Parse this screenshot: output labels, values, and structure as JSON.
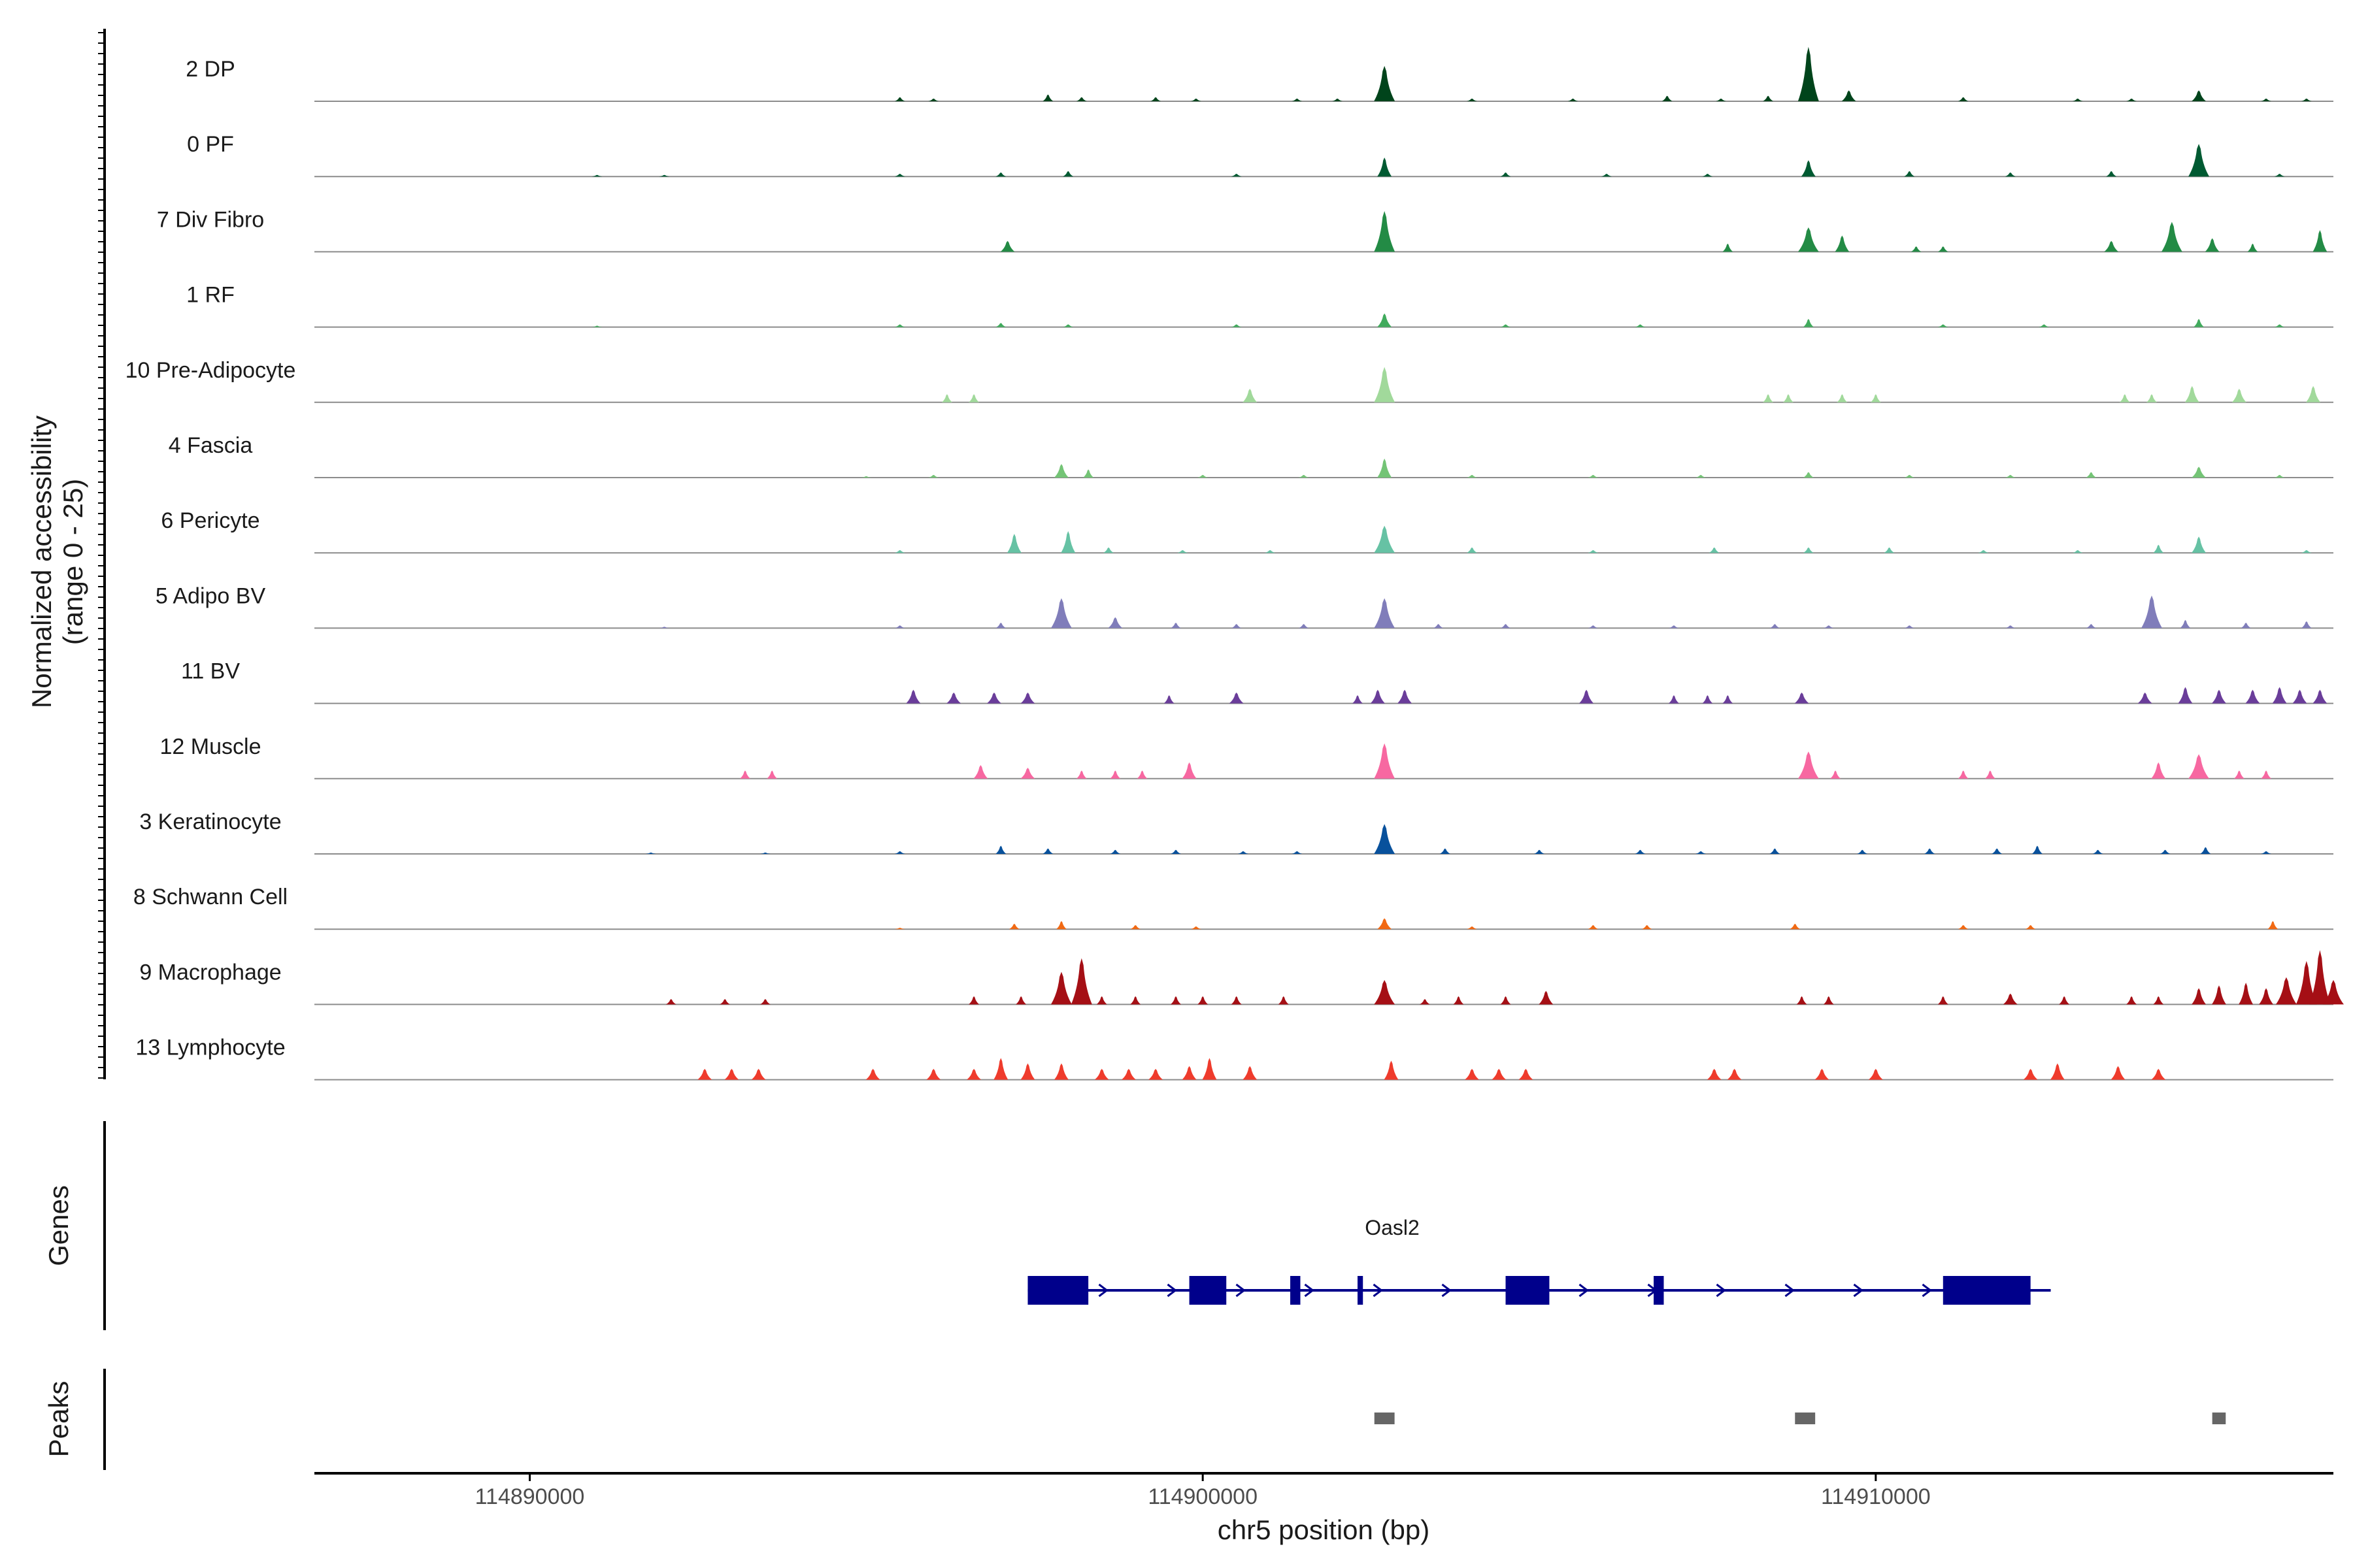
{
  "chart_data": {
    "type": "area",
    "title": "",
    "ylabel_line1": "Normalized accessibility",
    "ylabel_line2": "(range 0 - 25)",
    "ylim": [
      0,
      25
    ],
    "xlabel": "chr5 position (bp)",
    "xlim": [
      114886800,
      114916800
    ],
    "x_ticks": [
      114890000,
      114900000,
      114910000
    ],
    "x_tick_labels": [
      "114890000",
      "114900000",
      "114910000"
    ],
    "tracks": [
      {
        "name": "2 DP",
        "color": "#00441b",
        "peaks": [
          [
            114895500,
            1.5
          ],
          [
            114896000,
            1
          ],
          [
            114897700,
            2.5
          ],
          [
            114898200,
            1.5
          ],
          [
            114899300,
            1.5
          ],
          [
            114899900,
            1
          ],
          [
            114901400,
            1
          ],
          [
            114902000,
            1
          ],
          [
            114902700,
            13
          ],
          [
            114904000,
            1
          ],
          [
            114905500,
            1
          ],
          [
            114906900,
            2
          ],
          [
            114907700,
            1
          ],
          [
            114908400,
            2
          ],
          [
            114909000,
            20
          ],
          [
            114909600,
            4
          ],
          [
            114911300,
            1.5
          ],
          [
            114913000,
            1
          ],
          [
            114913800,
            1
          ],
          [
            114914800,
            4
          ],
          [
            114915800,
            1
          ],
          [
            114916400,
            1
          ]
        ]
      },
      {
        "name": "0 PF",
        "color": "#005a32",
        "peaks": [
          [
            114891000,
            0.6
          ],
          [
            114892000,
            0.6
          ],
          [
            114895500,
            1
          ],
          [
            114897000,
            1.5
          ],
          [
            114898000,
            2
          ],
          [
            114900500,
            1
          ],
          [
            114902700,
            7
          ],
          [
            114904500,
            1.5
          ],
          [
            114906000,
            1
          ],
          [
            114907500,
            1
          ],
          [
            114909000,
            6
          ],
          [
            114910500,
            2
          ],
          [
            114912000,
            1.5
          ],
          [
            114913500,
            2
          ],
          [
            114914800,
            12
          ],
          [
            114916000,
            1
          ]
        ]
      },
      {
        "name": "7 Div Fibro",
        "color": "#238b45",
        "peaks": [
          [
            114897100,
            4
          ],
          [
            114902700,
            15
          ],
          [
            114907800,
            3
          ],
          [
            114909000,
            9
          ],
          [
            114909500,
            6
          ],
          [
            114910600,
            2
          ],
          [
            114911000,
            2
          ],
          [
            114913500,
            4
          ],
          [
            114914400,
            11
          ],
          [
            114915000,
            5
          ],
          [
            114915600,
            3
          ],
          [
            114916600,
            8
          ]
        ]
      },
      {
        "name": "1 RF",
        "color": "#41ab5d",
        "peaks": [
          [
            114891000,
            0.5
          ],
          [
            114895500,
            1
          ],
          [
            114897000,
            1.5
          ],
          [
            114898000,
            1
          ],
          [
            114900500,
            1
          ],
          [
            114902700,
            5
          ],
          [
            114904500,
            1
          ],
          [
            114906500,
            1
          ],
          [
            114909000,
            3
          ],
          [
            114911000,
            1
          ],
          [
            114912500,
            1
          ],
          [
            114914800,
            3
          ],
          [
            114916000,
            1
          ]
        ]
      },
      {
        "name": "10 Pre-Adipocyte",
        "color": "#a1d99b",
        "peaks": [
          [
            114896200,
            3
          ],
          [
            114896600,
            3
          ],
          [
            114900700,
            5
          ],
          [
            114902700,
            13
          ],
          [
            114908400,
            3
          ],
          [
            114908700,
            3
          ],
          [
            114909500,
            3
          ],
          [
            114910000,
            3
          ],
          [
            114913700,
            3
          ],
          [
            114914100,
            3
          ],
          [
            114914700,
            6
          ],
          [
            114915400,
            5
          ],
          [
            114916500,
            6
          ]
        ]
      },
      {
        "name": "4 Fascia",
        "color": "#74c476",
        "peaks": [
          [
            114895000,
            0.5
          ],
          [
            114896000,
            1
          ],
          [
            114897900,
            5
          ],
          [
            114898300,
            3
          ],
          [
            114900000,
            1
          ],
          [
            114901500,
            1
          ],
          [
            114902700,
            7
          ],
          [
            114904000,
            1
          ],
          [
            114905800,
            1
          ],
          [
            114907400,
            1
          ],
          [
            114909000,
            2
          ],
          [
            114910500,
            1
          ],
          [
            114912000,
            1
          ],
          [
            114913200,
            2
          ],
          [
            114914800,
            4
          ],
          [
            114916000,
            1
          ]
        ]
      },
      {
        "name": "6 Pericyte",
        "color": "#66c2a4",
        "peaks": [
          [
            114895500,
            1
          ],
          [
            114897200,
            7
          ],
          [
            114898000,
            8
          ],
          [
            114898600,
            2
          ],
          [
            114899700,
            1
          ],
          [
            114901000,
            1
          ],
          [
            114902700,
            10
          ],
          [
            114904000,
            2
          ],
          [
            114905800,
            1
          ],
          [
            114907600,
            2
          ],
          [
            114909000,
            2
          ],
          [
            114910200,
            2
          ],
          [
            114911600,
            1
          ],
          [
            114913000,
            1
          ],
          [
            114914200,
            3
          ],
          [
            114914800,
            6
          ],
          [
            114916400,
            1
          ]
        ]
      },
      {
        "name": "5 Adipo BV",
        "color": "#807dba",
        "peaks": [
          [
            114892000,
            0.5
          ],
          [
            114895500,
            1
          ],
          [
            114897000,
            2
          ],
          [
            114897900,
            11
          ],
          [
            114898700,
            4
          ],
          [
            114899600,
            2
          ],
          [
            114900500,
            1.5
          ],
          [
            114901500,
            1.5
          ],
          [
            114902700,
            11
          ],
          [
            114903500,
            1.5
          ],
          [
            114904500,
            1.5
          ],
          [
            114905800,
            1
          ],
          [
            114907000,
            1
          ],
          [
            114908500,
            1.5
          ],
          [
            114909300,
            1
          ],
          [
            114910500,
            1
          ],
          [
            114912000,
            1
          ],
          [
            114913200,
            1.5
          ],
          [
            114914100,
            12
          ],
          [
            114914600,
            3
          ],
          [
            114915500,
            2
          ],
          [
            114916400,
            2.5
          ]
        ]
      },
      {
        "name": "11 BV",
        "color": "#6a3d9a",
        "peaks": [
          [
            114895700,
            5
          ],
          [
            114896300,
            4
          ],
          [
            114896900,
            4
          ],
          [
            114897400,
            4
          ],
          [
            114899500,
            3
          ],
          [
            114900500,
            4
          ],
          [
            114902300,
            3
          ],
          [
            114902600,
            5
          ],
          [
            114903000,
            5
          ],
          [
            114905700,
            5
          ],
          [
            114907000,
            3
          ],
          [
            114907500,
            3
          ],
          [
            114907800,
            3
          ],
          [
            114908900,
            4
          ],
          [
            114914000,
            4
          ],
          [
            114914600,
            6
          ],
          [
            114915100,
            5
          ],
          [
            114915600,
            5
          ],
          [
            114916000,
            6
          ],
          [
            114916300,
            5
          ],
          [
            114916600,
            5
          ]
        ]
      },
      {
        "name": "12 Muscle",
        "color": "#f768a1",
        "peaks": [
          [
            114893200,
            3
          ],
          [
            114893600,
            3
          ],
          [
            114896700,
            5
          ],
          [
            114897400,
            4
          ],
          [
            114898200,
            3
          ],
          [
            114898700,
            3
          ],
          [
            114899100,
            3
          ],
          [
            114899800,
            6
          ],
          [
            114902700,
            13
          ],
          [
            114909000,
            10
          ],
          [
            114909400,
            3
          ],
          [
            114911300,
            3
          ],
          [
            114911700,
            3
          ],
          [
            114914200,
            6
          ],
          [
            114914800,
            9
          ],
          [
            114915400,
            3
          ],
          [
            114915800,
            3
          ]
        ]
      },
      {
        "name": "3 Keratinocyte",
        "color": "#08519c",
        "peaks": [
          [
            114891800,
            0.5
          ],
          [
            114893500,
            0.5
          ],
          [
            114895500,
            1
          ],
          [
            114897000,
            3
          ],
          [
            114897700,
            2
          ],
          [
            114898700,
            1.5
          ],
          [
            114899600,
            1.5
          ],
          [
            114900600,
            1
          ],
          [
            114901400,
            1
          ],
          [
            114902700,
            11
          ],
          [
            114903600,
            2
          ],
          [
            114905000,
            1.5
          ],
          [
            114906500,
            1.5
          ],
          [
            114907400,
            1
          ],
          [
            114908500,
            2
          ],
          [
            114909800,
            1.5
          ],
          [
            114910800,
            2
          ],
          [
            114911800,
            2
          ],
          [
            114912400,
            3
          ],
          [
            114913300,
            1.5
          ],
          [
            114914300,
            1.5
          ],
          [
            114914900,
            2.5
          ],
          [
            114915800,
            1
          ]
        ]
      },
      {
        "name": "8 Schwann Cell",
        "color": "#f16913",
        "peaks": [
          [
            114895500,
            0.5
          ],
          [
            114897200,
            2
          ],
          [
            114897900,
            3
          ],
          [
            114899000,
            1.5
          ],
          [
            114899900,
            1
          ],
          [
            114902700,
            4
          ],
          [
            114904000,
            1
          ],
          [
            114905800,
            1.5
          ],
          [
            114906600,
            1.5
          ],
          [
            114908800,
            2
          ],
          [
            114911300,
            1.5
          ],
          [
            114912300,
            1.5
          ],
          [
            114915900,
            3
          ]
        ]
      },
      {
        "name": "9 Macrophage",
        "color": "#a50f15",
        "peaks": [
          [
            114892100,
            2
          ],
          [
            114892900,
            2
          ],
          [
            114893500,
            2
          ],
          [
            114896600,
            3
          ],
          [
            114897300,
            3
          ],
          [
            114897900,
            12
          ],
          [
            114898200,
            17
          ],
          [
            114898500,
            3
          ],
          [
            114899000,
            3
          ],
          [
            114899600,
            3
          ],
          [
            114900000,
            3
          ],
          [
            114900500,
            3
          ],
          [
            114901200,
            3
          ],
          [
            114902700,
            9
          ],
          [
            114903300,
            2
          ],
          [
            114903800,
            3
          ],
          [
            114904500,
            3
          ],
          [
            114905100,
            5
          ],
          [
            114908900,
            3
          ],
          [
            114909300,
            3
          ],
          [
            114911000,
            3
          ],
          [
            114912000,
            4
          ],
          [
            114912800,
            3
          ],
          [
            114913800,
            3
          ],
          [
            114914200,
            3
          ],
          [
            114914800,
            6
          ],
          [
            114915100,
            7
          ],
          [
            114915500,
            8
          ],
          [
            114915800,
            6
          ],
          [
            114916100,
            10
          ],
          [
            114916400,
            16
          ],
          [
            114916600,
            20
          ],
          [
            114916800,
            9
          ]
        ]
      },
      {
        "name": "13 Lymphocyte",
        "color": "#ef3b2c",
        "peaks": [
          [
            114892600,
            4
          ],
          [
            114893000,
            4
          ],
          [
            114893400,
            4
          ],
          [
            114895100,
            4
          ],
          [
            114896000,
            4
          ],
          [
            114896600,
            4
          ],
          [
            114897000,
            8
          ],
          [
            114897400,
            6
          ],
          [
            114897900,
            6
          ],
          [
            114898500,
            4
          ],
          [
            114898900,
            4
          ],
          [
            114899300,
            4
          ],
          [
            114899800,
            5
          ],
          [
            114900100,
            8
          ],
          [
            114900700,
            5
          ],
          [
            114902800,
            7
          ],
          [
            114904000,
            4
          ],
          [
            114904400,
            4
          ],
          [
            114904800,
            4
          ],
          [
            114907600,
            4
          ],
          [
            114907900,
            4
          ],
          [
            114909200,
            4
          ],
          [
            114910000,
            4
          ],
          [
            114912300,
            4
          ],
          [
            114912700,
            6
          ],
          [
            114913600,
            5
          ],
          [
            114914200,
            4
          ]
        ]
      }
    ],
    "genes": {
      "label": "Genes",
      "gene_name": "Oasl2",
      "strand": "+",
      "span": [
        114897400,
        114912600
      ],
      "exons": [
        [
          114897400,
          114898300
        ],
        [
          114899800,
          114900350
        ],
        [
          114901300,
          114901450
        ],
        [
          114902300,
          114902380
        ],
        [
          114904500,
          114905150
        ],
        [
          114906700,
          114906850
        ],
        [
          114911000,
          114912300
        ]
      ]
    },
    "peaks_track": {
      "label": "Peaks",
      "regions": [
        [
          114902550,
          114902850
        ],
        [
          114908800,
          114909100
        ],
        [
          114915000,
          114915200
        ]
      ]
    }
  }
}
